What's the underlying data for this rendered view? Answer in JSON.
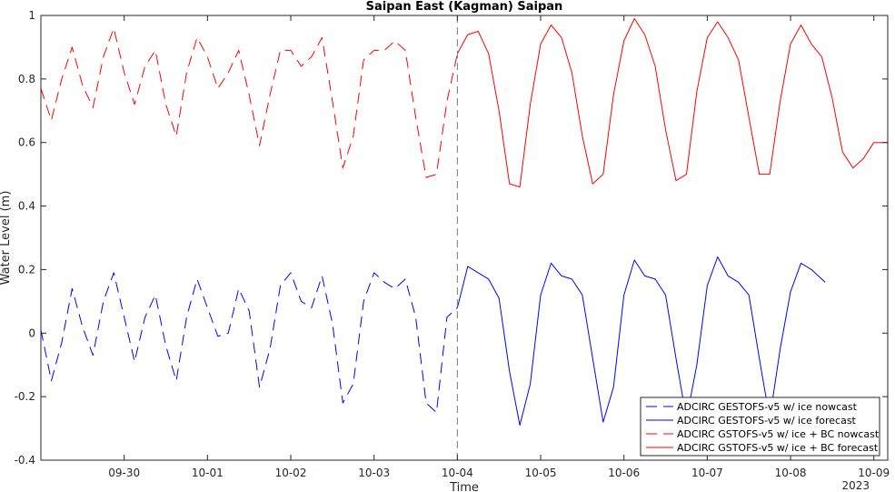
{
  "chart_data": {
    "type": "line",
    "title": "Saipan East (Kagman) Saipan",
    "xlabel": "Time",
    "ylabel": "Water Level (m)",
    "xlim": [
      "2023-09-29T00:00",
      "2023-10-09T04:00"
    ],
    "ylim": [
      -0.4,
      1.0
    ],
    "x_ticks": [
      "09-30",
      "10-01",
      "10-02",
      "10-03",
      "10-04",
      "10-05",
      "10-06",
      "10-07",
      "10-08",
      "10-09"
    ],
    "x_tick_dates": [
      "2023-09-30",
      "2023-10-01",
      "2023-10-02",
      "2023-10-03",
      "2023-10-04",
      "2023-10-05",
      "2023-10-06",
      "2023-10-07",
      "2023-10-08",
      "2023-10-09"
    ],
    "x_secondary_label": "2023",
    "y_ticks": [
      "-0.4",
      "-0.2",
      "0",
      "0.2",
      "0.4",
      "0.6",
      "0.8",
      "1"
    ],
    "y_tick_values": [
      -0.4,
      -0.2,
      0,
      0.2,
      0.4,
      0.6,
      0.8,
      1.0
    ],
    "nowcast_forecast_split": "2023-10-04T00:00",
    "grid": false,
    "legend_position": "bottom-right",
    "series": [
      {
        "name": "ADCIRC GESTOFS-v5 w/ ice nowcast",
        "color": "#0000ff",
        "style": "dashed",
        "x": [
          "2023-09-29T00:00",
          "2023-09-29T03:00",
          "2023-09-29T06:00",
          "2023-09-29T09:00",
          "2023-09-29T12:00",
          "2023-09-29T15:00",
          "2023-09-29T18:00",
          "2023-09-29T21:00",
          "2023-09-30T00:00",
          "2023-09-30T03:00",
          "2023-09-30T06:00",
          "2023-09-30T09:00",
          "2023-09-30T12:00",
          "2023-09-30T15:00",
          "2023-09-30T18:00",
          "2023-09-30T21:00",
          "2023-10-01T00:00",
          "2023-10-01T03:00",
          "2023-10-01T06:00",
          "2023-10-01T09:00",
          "2023-10-01T12:00",
          "2023-10-01T15:00",
          "2023-10-01T18:00",
          "2023-10-01T21:00",
          "2023-10-02T00:00",
          "2023-10-02T03:00",
          "2023-10-02T06:00",
          "2023-10-02T09:00",
          "2023-10-02T12:00",
          "2023-10-02T15:00",
          "2023-10-02T18:00",
          "2023-10-02T21:00",
          "2023-10-03T00:00",
          "2023-10-03T03:00",
          "2023-10-03T06:00",
          "2023-10-03T09:00",
          "2023-10-03T12:00",
          "2023-10-03T15:00",
          "2023-10-03T18:00",
          "2023-10-03T21:00",
          "2023-10-04T00:00"
        ],
        "values": [
          0.01,
          -0.15,
          -0.03,
          0.14,
          0.02,
          -0.07,
          0.1,
          0.19,
          0.05,
          -0.09,
          0.05,
          0.12,
          -0.04,
          -0.15,
          0.05,
          0.17,
          0.08,
          -0.01,
          0.0,
          0.14,
          0.07,
          -0.17,
          -0.05,
          0.15,
          0.19,
          0.1,
          0.08,
          0.18,
          0.03,
          -0.22,
          -0.16,
          0.1,
          0.19,
          0.16,
          0.14,
          0.17,
          0.05,
          -0.22,
          -0.25,
          0.05,
          0.08
        ]
      },
      {
        "name": "ADCIRC GESTOFS-v5 w/ ice forecast",
        "color": "#0000ff",
        "style": "solid",
        "x": [
          "2023-10-04T00:00",
          "2023-10-04T03:00",
          "2023-10-04T06:00",
          "2023-10-04T09:00",
          "2023-10-04T12:00",
          "2023-10-04T15:00",
          "2023-10-04T18:00",
          "2023-10-04T21:00",
          "2023-10-05T00:00",
          "2023-10-05T03:00",
          "2023-10-05T06:00",
          "2023-10-05T09:00",
          "2023-10-05T12:00",
          "2023-10-05T15:00",
          "2023-10-05T18:00",
          "2023-10-05T21:00",
          "2023-10-06T00:00",
          "2023-10-06T03:00",
          "2023-10-06T06:00",
          "2023-10-06T09:00",
          "2023-10-06T12:00",
          "2023-10-06T15:00",
          "2023-10-06T18:00",
          "2023-10-06T21:00",
          "2023-10-07T00:00",
          "2023-10-07T03:00",
          "2023-10-07T06:00",
          "2023-10-07T09:00",
          "2023-10-07T12:00",
          "2023-10-07T15:00",
          "2023-10-07T18:00",
          "2023-10-07T21:00",
          "2023-10-08T00:00",
          "2023-10-08T03:00",
          "2023-10-08T06:00",
          "2023-10-08T09:00",
          "2023-10-08T10:00"
        ],
        "values": [
          0.08,
          0.21,
          0.19,
          0.17,
          0.11,
          -0.12,
          -0.29,
          -0.16,
          0.12,
          0.22,
          0.18,
          0.17,
          0.12,
          -0.08,
          -0.28,
          -0.17,
          0.12,
          0.23,
          0.18,
          0.17,
          0.12,
          -0.08,
          -0.27,
          -0.1,
          0.15,
          0.24,
          0.18,
          0.16,
          0.12,
          -0.08,
          -0.27,
          -0.05,
          0.13,
          0.22,
          0.2,
          0.17,
          0.16
        ]
      },
      {
        "name": "ADCIRC GSTOFS-v5 w/ ice + BC nowcast",
        "color": "#ff0000",
        "style": "dashed",
        "x": [
          "2023-09-29T00:00",
          "2023-09-29T03:00",
          "2023-09-29T06:00",
          "2023-09-29T09:00",
          "2023-09-29T12:00",
          "2023-09-29T15:00",
          "2023-09-29T18:00",
          "2023-09-29T21:00",
          "2023-09-30T00:00",
          "2023-09-30T03:00",
          "2023-09-30T06:00",
          "2023-09-30T09:00",
          "2023-09-30T12:00",
          "2023-09-30T15:00",
          "2023-09-30T18:00",
          "2023-09-30T21:00",
          "2023-10-01T00:00",
          "2023-10-01T03:00",
          "2023-10-01T06:00",
          "2023-10-01T09:00",
          "2023-10-01T12:00",
          "2023-10-01T15:00",
          "2023-10-01T18:00",
          "2023-10-01T21:00",
          "2023-10-02T00:00",
          "2023-10-02T03:00",
          "2023-10-02T06:00",
          "2023-10-02T09:00",
          "2023-10-02T12:00",
          "2023-10-02T15:00",
          "2023-10-02T18:00",
          "2023-10-02T21:00",
          "2023-10-03T00:00",
          "2023-10-03T03:00",
          "2023-10-03T06:00",
          "2023-10-03T09:00",
          "2023-10-03T12:00",
          "2023-10-03T15:00",
          "2023-10-03T18:00",
          "2023-10-03T21:00",
          "2023-10-04T00:00"
        ],
        "values": [
          0.77,
          0.67,
          0.8,
          0.9,
          0.78,
          0.71,
          0.87,
          0.96,
          0.82,
          0.72,
          0.84,
          0.89,
          0.72,
          0.62,
          0.82,
          0.93,
          0.87,
          0.77,
          0.82,
          0.89,
          0.75,
          0.59,
          0.75,
          0.89,
          0.89,
          0.84,
          0.87,
          0.93,
          0.73,
          0.52,
          0.62,
          0.86,
          0.89,
          0.89,
          0.92,
          0.89,
          0.68,
          0.49,
          0.5,
          0.73,
          0.88
        ]
      },
      {
        "name": "ADCIRC GSTOFS-v5 w/ ice + BC forecast",
        "color": "#ff0000",
        "style": "solid",
        "x": [
          "2023-10-04T00:00",
          "2023-10-04T03:00",
          "2023-10-04T06:00",
          "2023-10-04T09:00",
          "2023-10-04T12:00",
          "2023-10-04T15:00",
          "2023-10-04T18:00",
          "2023-10-04T21:00",
          "2023-10-05T00:00",
          "2023-10-05T03:00",
          "2023-10-05T06:00",
          "2023-10-05T09:00",
          "2023-10-05T12:00",
          "2023-10-05T15:00",
          "2023-10-05T18:00",
          "2023-10-05T21:00",
          "2023-10-06T00:00",
          "2023-10-06T03:00",
          "2023-10-06T06:00",
          "2023-10-06T09:00",
          "2023-10-06T12:00",
          "2023-10-06T15:00",
          "2023-10-06T18:00",
          "2023-10-06T21:00",
          "2023-10-07T00:00",
          "2023-10-07T03:00",
          "2023-10-07T06:00",
          "2023-10-07T09:00",
          "2023-10-07T12:00",
          "2023-10-07T15:00",
          "2023-10-07T18:00",
          "2023-10-07T21:00",
          "2023-10-08T00:00",
          "2023-10-08T03:00",
          "2023-10-08T06:00",
          "2023-10-08T09:00",
          "2023-10-08T12:00",
          "2023-10-08T15:00",
          "2023-10-08T18:00",
          "2023-10-08T21:00",
          "2023-10-09T00:00",
          "2023-10-09T03:00",
          "2023-10-09T04:00"
        ],
        "values": [
          0.88,
          0.94,
          0.95,
          0.88,
          0.7,
          0.47,
          0.46,
          0.72,
          0.91,
          0.97,
          0.93,
          0.82,
          0.62,
          0.47,
          0.5,
          0.75,
          0.92,
          0.99,
          0.94,
          0.84,
          0.64,
          0.48,
          0.5,
          0.76,
          0.93,
          0.98,
          0.93,
          0.86,
          0.68,
          0.5,
          0.5,
          0.73,
          0.91,
          0.97,
          0.91,
          0.87,
          0.74,
          0.57,
          0.52,
          0.55,
          0.6,
          0.6,
          0.6
        ]
      }
    ]
  }
}
